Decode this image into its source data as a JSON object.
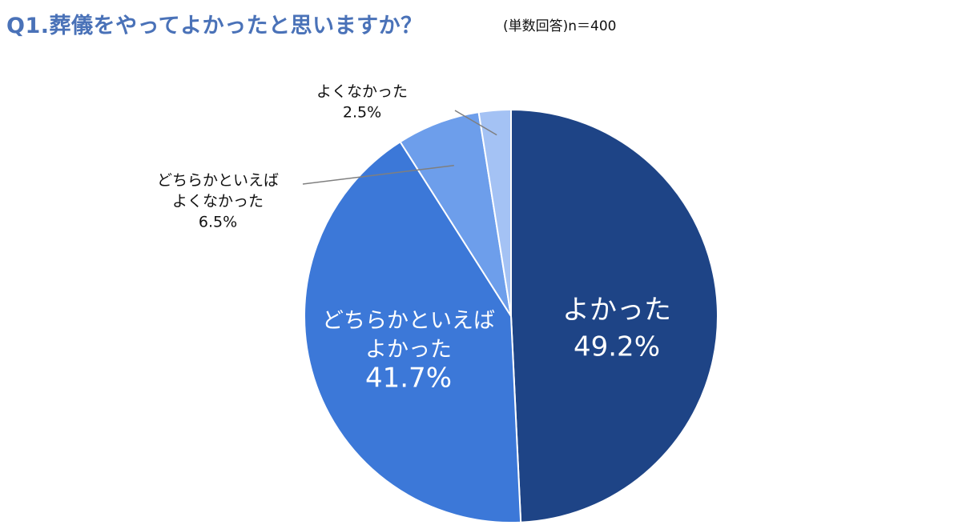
{
  "header": {
    "title": "Q1.葬儀をやってよかったと思いますか？",
    "subtitle": "(単数回答)n＝400"
  },
  "chart_data": {
    "type": "pie",
    "title": "Q1.葬儀をやってよかったと思いますか？",
    "slices": [
      {
        "label_lines": [
          "よかった"
        ],
        "value": 49.2,
        "value_label": "49.2%",
        "color": "#1e4486"
      },
      {
        "label_lines": [
          "どちらかといえば",
          "よかった"
        ],
        "value": 41.7,
        "value_label": "41.7%",
        "color": "#3c78d8"
      },
      {
        "label_lines": [
          "どちらかといえば",
          "よくなかった"
        ],
        "value": 6.5,
        "value_label": "6.5%",
        "color": "#6d9eeb"
      },
      {
        "label_lines": [
          "よくなかった"
        ],
        "value": 2.5,
        "value_label": "2.5%",
        "color": "#a4c2f4"
      }
    ],
    "start_angle": "12 o'clock",
    "direction": "clockwise",
    "legend": "none"
  }
}
